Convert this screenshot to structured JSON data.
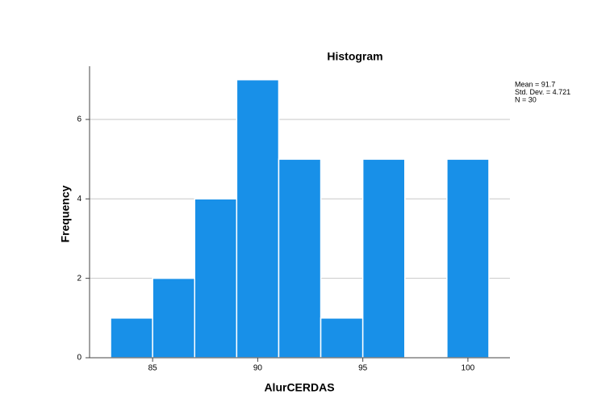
{
  "chart_data": {
    "type": "histogram",
    "title": "Histogram",
    "x_label": "AlurCERDAS",
    "y_label": "Frequency",
    "annotations": [
      "Mean = 91.7",
      "Std. Dev. = 4.721",
      "N = 30"
    ],
    "bins": [
      83,
      85,
      87,
      89,
      91,
      93,
      95,
      97,
      99,
      101
    ],
    "values": [
      1,
      2,
      4,
      7,
      5,
      1,
      5,
      0,
      5
    ],
    "color": "#1890e8",
    "xlim": [
      82,
      102
    ],
    "xticks": [
      85,
      90,
      95,
      100
    ],
    "ylim": [
      0,
      7.34
    ],
    "yticks": [
      0,
      2,
      4,
      6
    ],
    "grid": true
  }
}
